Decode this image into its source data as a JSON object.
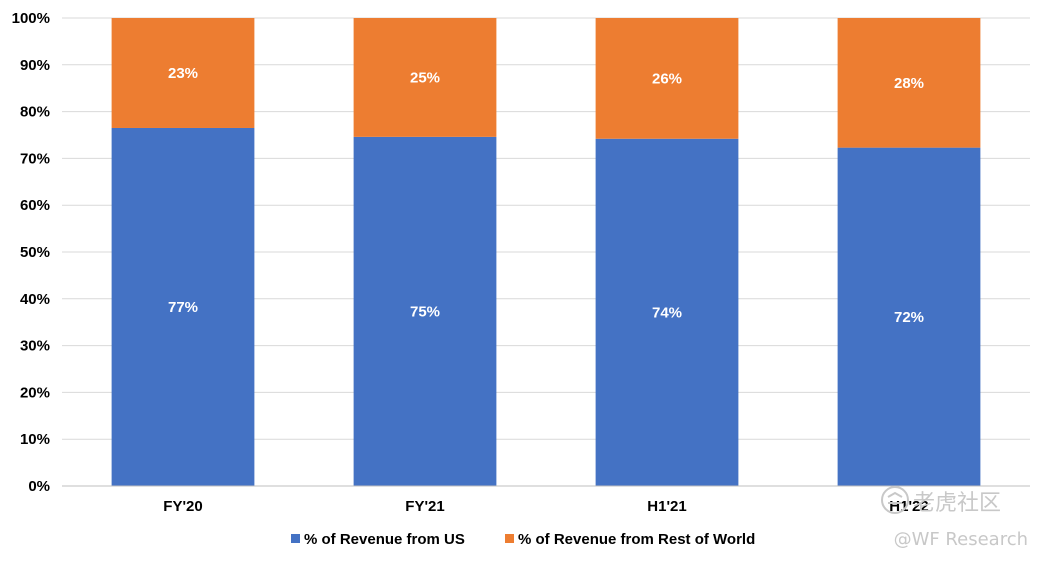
{
  "chart_data": {
    "type": "bar",
    "stacked": true,
    "categories": [
      "FY'20",
      "FY'21",
      "H1'21",
      "H1'22"
    ],
    "series": [
      {
        "name": "% of Revenue from US",
        "values": [
          76.5,
          74.6,
          74.2,
          72.3
        ],
        "labels": [
          "77%",
          "75%",
          "74%",
          "72%"
        ],
        "color": "#4472C4"
      },
      {
        "name": "% of Revenue from Rest of World",
        "values": [
          23.5,
          25.4,
          25.8,
          27.7
        ],
        "labels": [
          "23%",
          "25%",
          "26%",
          "28%"
        ],
        "color": "#ED7D31"
      }
    ],
    "yticks": [
      "0%",
      "10%",
      "20%",
      "30%",
      "40%",
      "50%",
      "60%",
      "70%",
      "80%",
      "90%",
      "100%"
    ],
    "ylim": [
      0,
      100
    ],
    "grid": true,
    "gridColor": "#d9d9d9",
    "legend_position": "bottom"
  },
  "watermark": {
    "site": "老虎社区",
    "author": "@WF Research"
  }
}
